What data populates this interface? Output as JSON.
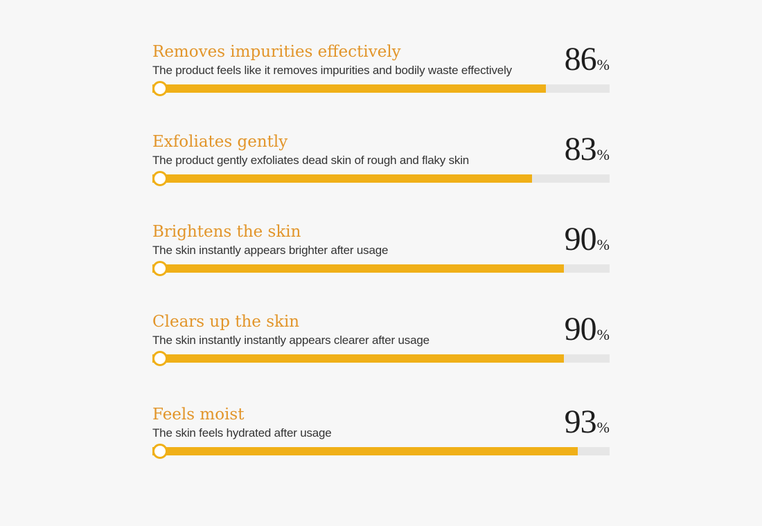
{
  "chart_data": {
    "type": "bar",
    "orientation": "horizontal",
    "unit": "%",
    "xlim": [
      0,
      100
    ],
    "colors": {
      "title": "#e2952a",
      "fill": "#f0b018",
      "track": "#e6e6e6",
      "text": "#333333",
      "value": "#1e1e1e"
    },
    "items": [
      {
        "title": "Removes impurities effectively",
        "description": "The product feels like it removes impurities and bodily waste effectively",
        "value": 86
      },
      {
        "title": "Exfoliates gently",
        "description": "The product gently exfoliates dead skin of rough and flaky skin",
        "value": 83
      },
      {
        "title": "Brightens the skin",
        "description": "The skin instantly appears brighter after usage",
        "value": 90
      },
      {
        "title": "Clears up the skin",
        "description": "The skin instantly instantly appears clearer after usage",
        "value": 90
      },
      {
        "title": "Feels moist",
        "description": "The skin feels hydrated after usage",
        "value": 93
      }
    ]
  }
}
